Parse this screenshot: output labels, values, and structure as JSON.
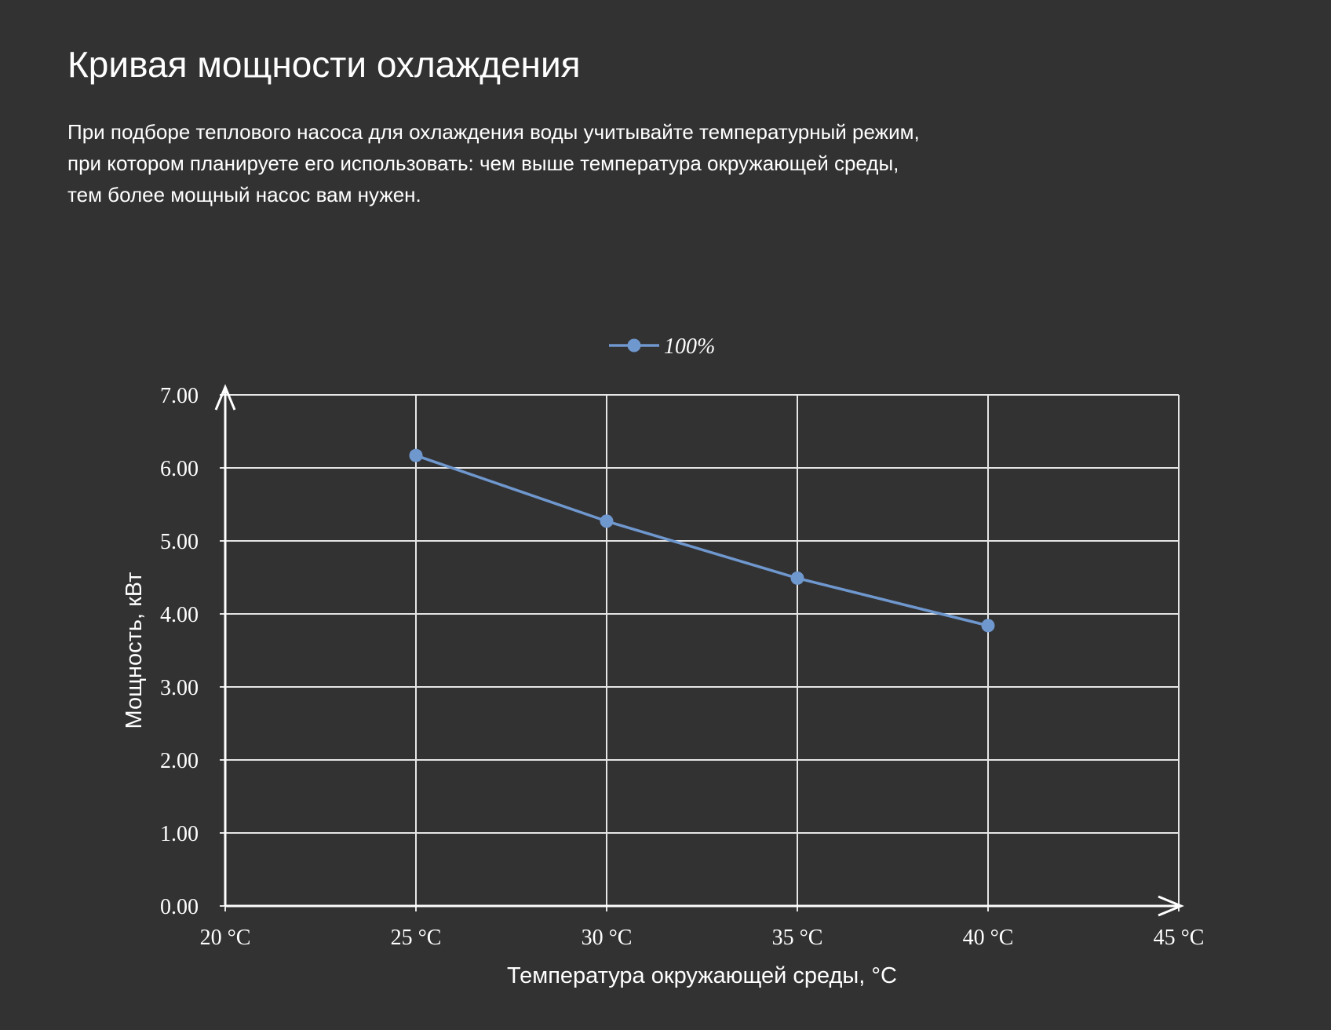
{
  "page": {
    "title": "Кривая мощности охлаждения",
    "description_lines": [
      "При подборе теплового насоса для охлаждения воды учитывайте температурный режим,",
      "при котором планируете его использовать: чем выше температура окружающей среды,",
      "тем более мощный насос вам нужен."
    ]
  },
  "colors": {
    "background": "#333233",
    "series": "#6f98cf",
    "grid": "#e6e6e6",
    "text": "#ffffff"
  },
  "chart_data": {
    "type": "line",
    "title": "",
    "xlabel": "Температура окружающей среды, °C",
    "ylabel": "Мощность, кВт",
    "xlim": [
      20,
      45
    ],
    "ylim": [
      0,
      7
    ],
    "x_ticks": [
      20,
      25,
      30,
      35,
      40,
      45
    ],
    "x_tick_labels": [
      "20 °C",
      "25 °C",
      "30 °C",
      "35 °C",
      "40 °C",
      "45 °C"
    ],
    "y_ticks": [
      0,
      1,
      2,
      3,
      4,
      5,
      6,
      7
    ],
    "y_tick_labels": [
      "0.00",
      "1.00",
      "2.00",
      "3.00",
      "4.00",
      "5.00",
      "6.00",
      "7.00"
    ],
    "grid": true,
    "legend_position": "top-center",
    "series": [
      {
        "name": "100%",
        "x": [
          25,
          30,
          35,
          40
        ],
        "y": [
          6.17,
          5.27,
          4.49,
          3.84
        ]
      }
    ]
  }
}
